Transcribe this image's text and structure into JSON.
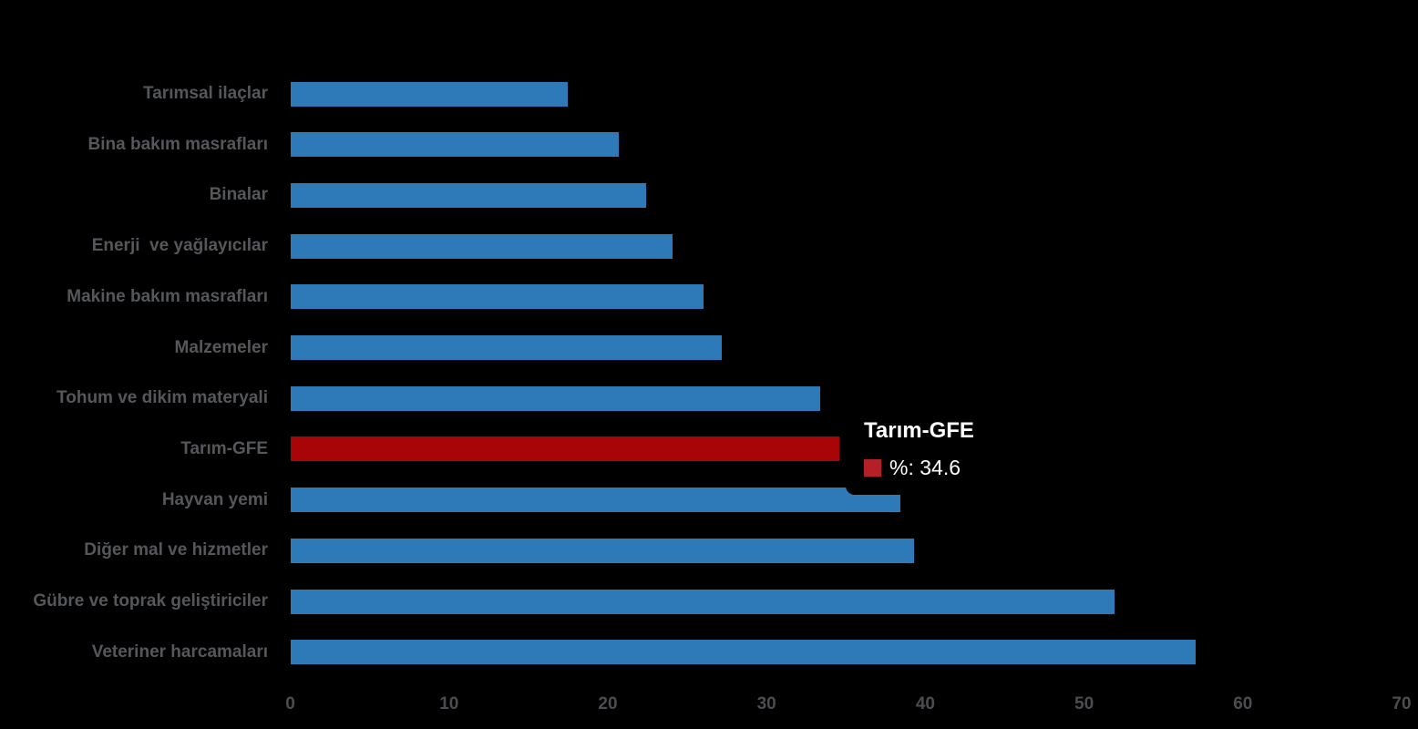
{
  "chart_data": {
    "type": "bar",
    "orientation": "horizontal",
    "title": "",
    "xlabel": "",
    "ylabel": "",
    "categories": [
      "Tarımsal ilaçlar",
      "Bina bakım masrafları",
      "Binalar",
      "Enerji  ve yağlayıcılar",
      "Makine bakım masrafları",
      "Malzemeler",
      "Tohum ve dikim materyali",
      "Tarım-GFE",
      "Hayvan yemi",
      "Diğer mal ve hizmetler",
      "Gübre ve toprak geliştiriciler",
      "Veteriner harcamaları"
    ],
    "values": [
      17.5,
      20.7,
      22.4,
      24.1,
      26.0,
      27.2,
      33.4,
      34.6,
      38.4,
      39.3,
      51.9,
      57.0
    ],
    "highlight_index": 7,
    "xlim": [
      0,
      70
    ],
    "x_ticks": [
      "0",
      "10",
      "20",
      "30",
      "40",
      "50",
      "60",
      "70"
    ],
    "grid": false,
    "legend": false,
    "colors": {
      "bar_default": "#2E79B8",
      "bar_highlight": "#A80509",
      "background": "#000000",
      "category_label": "#55575B",
      "tick_label": "#4B4D50"
    }
  },
  "tooltip": {
    "title": "Tarım-GFE",
    "value_label": "%: 34.6",
    "swatch_color": "#B32025",
    "text_color": "#FFFFFF",
    "background": "#000000"
  }
}
